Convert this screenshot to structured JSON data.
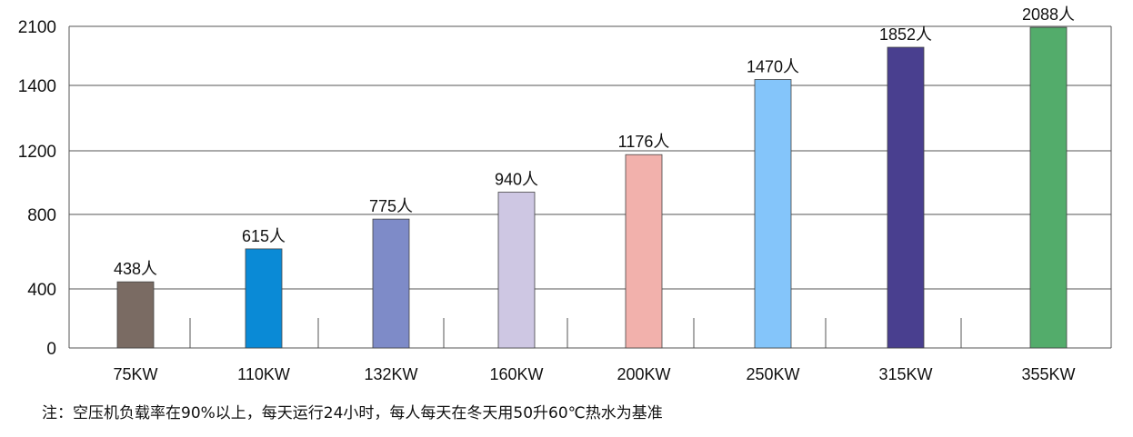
{
  "chart_data": {
    "type": "bar",
    "categories": [
      "75KW",
      "110KW",
      "132KW",
      "160KW",
      "200KW",
      "250KW",
      "315KW",
      "355KW"
    ],
    "values": [
      438,
      615,
      775,
      940,
      1176,
      1470,
      1852,
      2088
    ],
    "data_labels": [
      "438人",
      "615人",
      "775人",
      "940人",
      "1176人",
      "1470人",
      "1852人",
      "2088人"
    ],
    "colors": [
      "#7a6b63",
      "#0a8ad6",
      "#7e8bc8",
      "#cec7e3",
      "#f2b1ac",
      "#84c5fa",
      "#493f8f",
      "#53ac6b"
    ],
    "yticks": [
      0,
      400,
      800,
      1200,
      1400,
      2100
    ],
    "ylim": [
      0,
      2100
    ],
    "grid": true,
    "xlabel": "",
    "ylabel": "",
    "title": ""
  },
  "note": "注：空压机负载率在90%以上，每天运行24小时，每人每天在冬天用50升60℃热水为基准"
}
